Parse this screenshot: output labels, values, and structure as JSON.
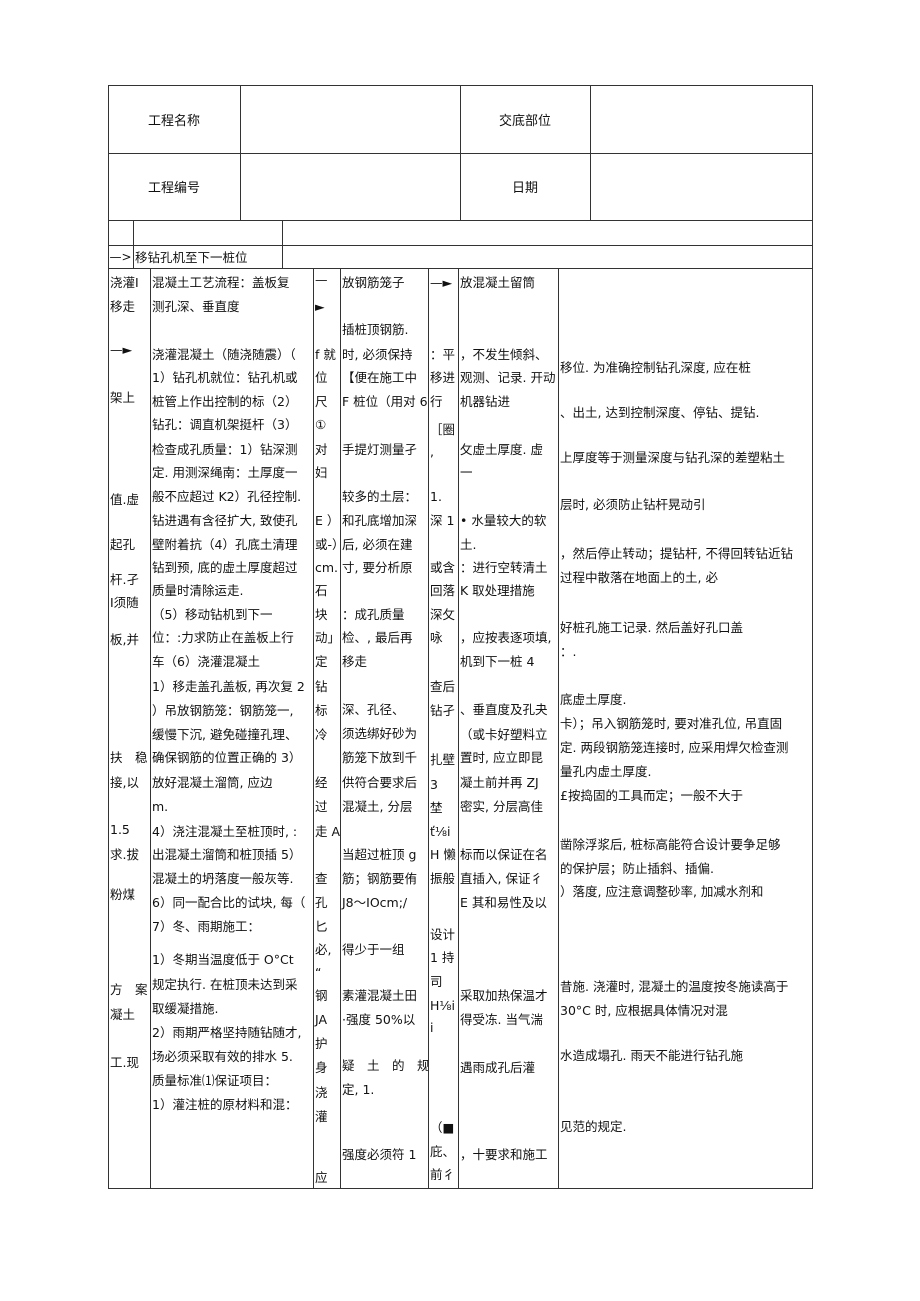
{
  "header": {
    "project_name_label": "工程名称",
    "project_name_value": "",
    "handover_location_label": "交底部位",
    "handover_location_value": "",
    "project_no_label": "工程编号",
    "project_no_value": "",
    "date_label": "日期",
    "date_value": ""
  },
  "flow_row": {
    "arrow": "—>",
    "text": "移钻孔机至下一桩位"
  },
  "columns": [
    {
      "lines": [
        "浇灌I",
        "移走",
        "—►",
        "架上",
        "值.虚",
        "起孔",
        "杆.孑",
        "I须随",
        "板,并",
        "扶　稳",
        "接,以",
        "1.5",
        "求.拔",
        "粉煤",
        "方　案",
        "凝土",
        "工.现"
      ]
    },
    {
      "lines": [
        "混凝土工艺流程：盖板复",
        "测孔深、垂直度",
        "浇灌混凝土（随浇随震）（",
        "1）钻孔机就位：钻孔机或",
        "桩管上作出控制的标（2）",
        "钻孔：调直机架挺杆（3）",
        "检查成孔质量：1）钻深测",
        "定. 用测深绳南：土厚度一",
        "般不应超过 K2）孔径控制.",
        "钻进遇有含径扩大, 致使孔",
        "壁附着抗（4）孔底土清理",
        "钻到预, 底的虚土厚度超过",
        "质量时清除运走.",
        "（5）移动钻机到下一",
        "位：:力求防止在盖板上行",
        "车（6）浇灌混凝土",
        "1）移走盖孔盖板, 再次复 2",
        "）吊放钢筋笼：钢筋笼一,",
        "缓慢下沉, 避免碰撞孔理、",
        "确保钢筋的位置正确的 3）",
        "放好混凝土溜筒, 应边",
        "m.",
        "4）浇注混凝土至桩顶时, :",
        "出混凝土溜筒和桩顶插 5）",
        "混凝土的坍落度一般灰等.",
        "6）同一配合比的试块, 每（",
        "7）冬、雨期施工：",
        "1）冬期当温度低于 O°Ct",
        "规定执行. 在桩顶未达到采",
        "取缓凝措施.",
        "2）雨期严格坚持随钻随才,",
        "场必须采取有效的排水 5.",
        "质量标准⑴保证项目：",
        "1）灌注桩的原材料和混："
      ]
    },
    {
      "lines": [
        "—",
        "►",
        "f 就",
        "位",
        "尺",
        "①",
        "对",
        "妇",
        "E ）",
        "或-）",
        "cm.",
        "石",
        "块",
        "动」",
        "定",
        "钻",
        "标",
        "冷",
        "经",
        "过",
        "走 A",
        "查",
        "孔",
        "匕",
        "必,",
        "“",
        "钢",
        "JA",
        "护",
        "身",
        "浇",
        "灌",
        "应"
      ]
    },
    {
      "lines": [
        "放钢筋笼子",
        "插桩顶钢筋.",
        "时, 必须保持",
        "【便在施工中",
        "F 桩位（用对 6",
        "手提灯测量孑",
        "较多的土层：",
        "和孔底增加深",
        "后, 必须在建",
        "寸, 要分析原",
        "：成孔质量",
        "检、, 最后再",
        "移走",
        "深、孔径、",
        "须选绑好砂为",
        "筋笼下放到千",
        "供符合要求后",
        "混凝土, 分层",
        "当超过桩顶 g",
        "筋；钢筋要侑",
        "J8～IOcm;/",
        "得少于一组",
        "素灌混凝土田",
        "·强度 50%以",
        "疑　土　的　规",
        "定, 1.",
        "强度必须符 1"
      ]
    },
    {
      "lines": [
        "—►",
        "：平",
        "移进",
        "行",
        "［圈",
        ",",
        "1.",
        "深 1",
        "或含",
        "回落",
        "深攵",
        "咏",
        "查后",
        "钻孑",
        "扎壁",
        "3",
        "埜",
        "ť⅛i",
        "H 懒",
        "振般",
        "设计",
        "1 持",
        "司",
        "H⅛i",
        "i",
        "（■",
        "庇、",
        "前彳"
      ]
    },
    {
      "lines": [
        "放混凝土留筒",
        "，不发生倾斜、",
        "观测、记录. 开动",
        "机器钻进",
        "攵虚土厚度. 虚",
        "一",
        "• 水量较大的软",
        "土.",
        "：进行空转清土",
        "K 取处理措施",
        "，应按表逐项填,",
        "机到下一桩 4",
        "、垂直度及孔夬",
        "（或卡好塑料立",
        "置时, 应立即昆",
        "凝土前并再 ZJ",
        "密实, 分层高佳",
        "标而以保证在名",
        "直插入, 保证彳",
        "E 其和易性及以",
        "采取加热保温才",
        "得受冻. 当气湍",
        "遇雨成孔后灌",
        "，十要求和施工"
      ]
    },
    {
      "lines": [
        "移位. 为准确控制钻孔深度, 应在桩",
        "、出土, 达到控制深度、停钻、提钻.",
        "上厚度等于测量深度与钻孔深的差塑粘土",
        "层时, 必须防止钻杆晃动引",
        "，然后停止转动；提钻杆, 不得回转钻近钻",
        "过程中散落在地面上的土, 必",
        "好桩孔施工记录. 然后盖好孔口盖",
        "：.",
        "底虚土厚度.",
        "卡）；吊入钢筋笼时, 要对准孔位, 吊直固",
        "定. 两段钢筋笼连接时, 应采用焊欠检查测",
        "量孔内虚土厚度.",
        "£按捣固的工具而定；一般不大于",
        "凿除浮浆后, 桩标高能符合设计要争足够",
        "的保护层；防止插斜、插偏.",
        "）落度, 应注意调整砂率, 加减水剂和",
        "昔施. 浇灌时, 混凝土的温度按冬施读高于",
        "30°C 时, 应根据具体情况对混",
        "水造成塌孔. 雨天不能进行钻孔施",
        "见范的规定."
      ]
    }
  ]
}
